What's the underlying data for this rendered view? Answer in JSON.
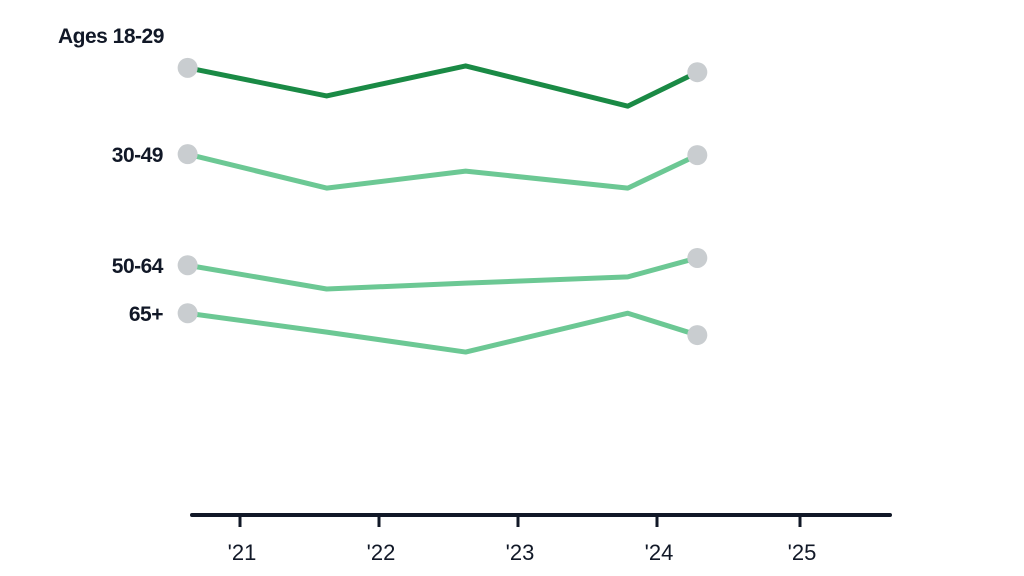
{
  "chart_data": {
    "type": "line",
    "title": "",
    "xlabel": "",
    "ylabel": "",
    "x": [
      "2020-08",
      "2021-08",
      "2022-08",
      "2023-10",
      "2024-04"
    ],
    "x_ticks": [
      {
        "label": "'21",
        "year": 2021
      },
      {
        "label": "'22",
        "year": 2022
      },
      {
        "label": "'23",
        "year": 2023
      },
      {
        "label": "'24",
        "year": 2024
      },
      {
        "label": "'25",
        "year": 2025
      }
    ],
    "ylim": [
      0,
      100
    ],
    "grid": false,
    "y_axis_shown": false,
    "series": [
      {
        "name": "Ages 18-29",
        "color": "#1a8a45",
        "values": [
          92.2,
          86.4,
          92.6,
          84.3,
          91.3
        ]
      },
      {
        "name": "30-49",
        "color": "#6cc894",
        "values": [
          74.4,
          67.4,
          70.9,
          67.4,
          74.2
        ]
      },
      {
        "name": "50-64",
        "color": "#6cc894",
        "values": [
          51.5,
          46.6,
          47.8,
          49.1,
          53.0
        ]
      },
      {
        "name": "65+",
        "color": "#6cc894",
        "values": [
          41.6,
          37.7,
          33.6,
          41.6,
          37.1
        ]
      }
    ],
    "endpoint_marker_color": "#c9cdd0",
    "axis_color": "#111827"
  }
}
